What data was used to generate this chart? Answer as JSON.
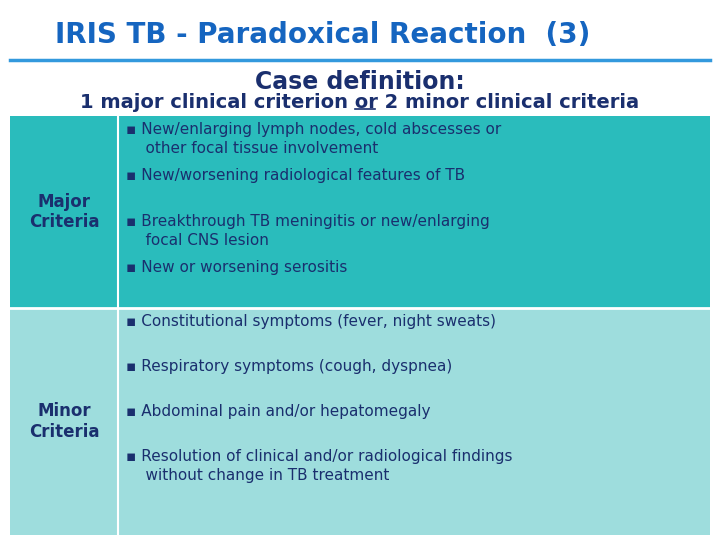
{
  "title": "IRIS TB - Paradoxical Reaction  (3)",
  "title_color": "#1565C0",
  "title_fontsize": 20,
  "case_def_title": "Case definition:",
  "case_def_fontsize": 17,
  "case_def_subtitle_before": "1 major clinical criterion ",
  "case_def_subtitle_or": "or",
  "case_def_subtitle_after": " 2 minor clinical criteria",
  "case_def_subtitle_fontsize": 14,
  "bg_color": "#FFFFFF",
  "major_bg": "#2ABCBC",
  "minor_bg": "#9EDDDD",
  "label_color": "#1A2F6E",
  "text_color": "#1A2F6E",
  "divider_color": "#3399DD",
  "major_label": "Major\nCriteria",
  "minor_label": "Minor\nCriteria",
  "label_fontsize": 12,
  "major_items": [
    "▪ New/enlarging lymph nodes, cold abscesses or\n    other focal tissue involvement",
    "▪ New/worsening radiological features of TB",
    "▪ Breakthrough TB meningitis or new/enlarging\n    focal CNS lesion",
    "▪ New or worsening serositis"
  ],
  "minor_items": [
    "▪ Constitutional symptoms (fever, night sweats)",
    "▪ Respiratory symptoms (cough, dyspnea)",
    "▪ Abdominal pain and/or hepatomegaly",
    "▪ Resolution of clinical and/or radiological findings\n    without change in TB treatment"
  ],
  "item_fontsize": 11
}
